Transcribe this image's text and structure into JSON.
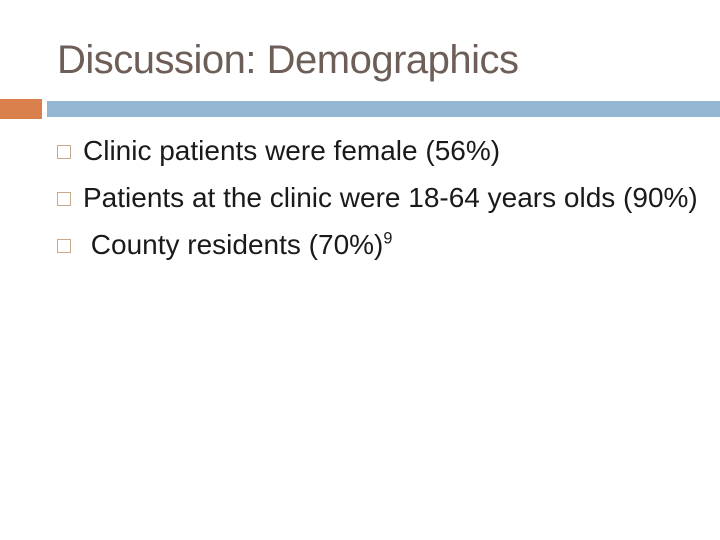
{
  "slide": {
    "title": "Discussion: Demographics",
    "bullets": [
      {
        "text": "Clinic patients were female (56%)",
        "superscript": ""
      },
      {
        "text": "Patients at the clinic were 18-64 years olds (90%)",
        "superscript": ""
      },
      {
        "text": " County residents (70%)",
        "superscript": "9"
      }
    ],
    "colors": {
      "background": "#FFFFFF",
      "title": "#6D5F57",
      "accent_orange": "#D9804C",
      "accent_blue": "#94B6D2",
      "bullet_square_border": "#C4A98C",
      "body_text": "#1A1A1A"
    }
  }
}
